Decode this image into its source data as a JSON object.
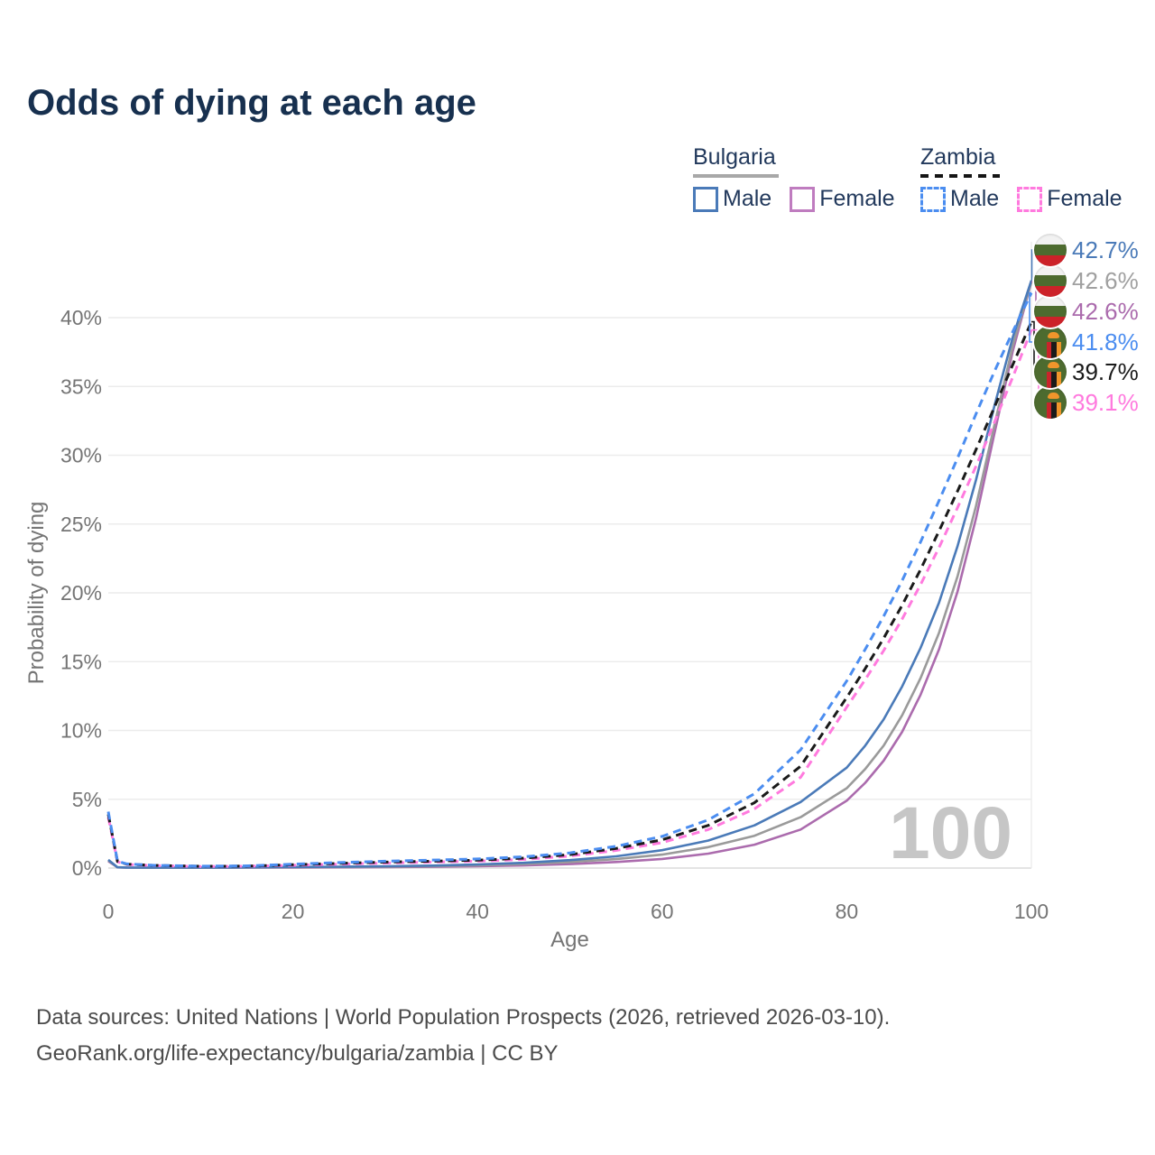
{
  "title": "Odds of dying at each age",
  "legend": {
    "groups": [
      {
        "name": "Bulgaria",
        "line_style": "solid",
        "line_color": "#a8a8a8",
        "items": [
          {
            "label": "Male",
            "color": "#4a7ab8",
            "style": "solid"
          },
          {
            "label": "Female",
            "color": "#bf7cbf",
            "style": "solid"
          }
        ]
      },
      {
        "name": "Zambia",
        "line_style": "dashed",
        "line_color": "#151515",
        "items": [
          {
            "label": "Male",
            "color": "#4b8df0",
            "style": "dashed"
          },
          {
            "label": "Female",
            "color": "#ff7ade",
            "style": "dashed"
          }
        ]
      }
    ]
  },
  "chart_data": {
    "type": "line",
    "title": "Odds of dying at each age",
    "xlabel": "Age",
    "ylabel": "Probability of dying",
    "xlim": [
      0,
      100
    ],
    "ylim": [
      0,
      44
    ],
    "xticks": [
      0,
      20,
      40,
      60,
      80,
      100
    ],
    "yticks": [
      0,
      5,
      10,
      15,
      20,
      25,
      30,
      35,
      40
    ],
    "ytick_suffix": "%",
    "grid": "horizontal",
    "legend_position": "top-right",
    "x": [
      0,
      1,
      2,
      5,
      10,
      15,
      20,
      25,
      30,
      35,
      40,
      45,
      50,
      55,
      60,
      65,
      70,
      75,
      80,
      82,
      84,
      86,
      88,
      90,
      92,
      94,
      96,
      98,
      100
    ],
    "series": [
      {
        "name": "Bulgaria Male",
        "country": "Bulgaria",
        "sex": "Male",
        "color": "#4a7ab8",
        "dash": "solid",
        "values": [
          0.6,
          0.06,
          0.04,
          0.03,
          0.03,
          0.05,
          0.08,
          0.1,
          0.13,
          0.18,
          0.26,
          0.38,
          0.58,
          0.85,
          1.3,
          2.0,
          3.1,
          4.8,
          7.3,
          8.9,
          10.8,
          13.2,
          16.0,
          19.3,
          23.4,
          28.2,
          33.6,
          38.6,
          42.7
        ],
        "end_label": "42.7%"
      },
      {
        "name": "Bulgaria Both sexes",
        "country": "Bulgaria",
        "sex": "Both",
        "color": "#9a9a9a",
        "dash": "solid",
        "values": [
          0.55,
          0.05,
          0.03,
          0.02,
          0.02,
          0.04,
          0.06,
          0.08,
          0.1,
          0.14,
          0.2,
          0.29,
          0.44,
          0.65,
          0.98,
          1.52,
          2.35,
          3.7,
          5.8,
          7.2,
          8.9,
          11.1,
          13.8,
          17.1,
          21.2,
          26.3,
          32.2,
          38.0,
          42.6
        ],
        "end_label": "42.6%"
      },
      {
        "name": "Bulgaria Female",
        "country": "Bulgaria",
        "sex": "Female",
        "color": "#ab6bad",
        "dash": "solid",
        "values": [
          0.5,
          0.05,
          0.03,
          0.02,
          0.02,
          0.03,
          0.04,
          0.05,
          0.07,
          0.09,
          0.13,
          0.19,
          0.29,
          0.44,
          0.66,
          1.05,
          1.7,
          2.8,
          4.9,
          6.2,
          7.8,
          9.9,
          12.6,
          15.9,
          20.1,
          25.4,
          31.6,
          37.6,
          42.6
        ],
        "end_label": "42.6%"
      },
      {
        "name": "Zambia Male",
        "country": "Zambia",
        "sex": "Male",
        "color": "#4b8df0",
        "dash": "dashed",
        "values": [
          4.1,
          0.5,
          0.3,
          0.2,
          0.14,
          0.16,
          0.28,
          0.4,
          0.5,
          0.58,
          0.66,
          0.82,
          1.1,
          1.58,
          2.3,
          3.5,
          5.4,
          8.6,
          13.6,
          15.9,
          18.3,
          20.9,
          23.7,
          26.7,
          29.8,
          33.0,
          36.1,
          39.0,
          41.8
        ],
        "end_label": "41.8%"
      },
      {
        "name": "Zambia Both sexes",
        "country": "Zambia",
        "sex": "Both",
        "color": "#1a1a1a",
        "dash": "dashed",
        "values": [
          3.9,
          0.48,
          0.28,
          0.19,
          0.13,
          0.14,
          0.24,
          0.34,
          0.43,
          0.5,
          0.57,
          0.72,
          0.98,
          1.42,
          2.05,
          3.1,
          4.75,
          7.4,
          12.4,
          14.5,
          16.7,
          19.1,
          21.7,
          24.5,
          27.4,
          30.4,
          33.5,
          36.6,
          39.7
        ],
        "end_label": "39.7%"
      },
      {
        "name": "Zambia Female",
        "country": "Zambia",
        "sex": "Female",
        "color": "#ff7ade",
        "dash": "dashed",
        "values": [
          3.7,
          0.45,
          0.26,
          0.18,
          0.12,
          0.13,
          0.2,
          0.28,
          0.36,
          0.43,
          0.5,
          0.63,
          0.87,
          1.28,
          1.85,
          2.8,
          4.3,
          6.6,
          11.7,
          13.7,
          15.8,
          18.1,
          20.6,
          23.3,
          26.2,
          29.2,
          32.4,
          35.7,
          39.1
        ],
        "end_label": "39.1%"
      }
    ]
  },
  "end_labels": [
    {
      "flag": "bulgaria",
      "value": "42.7%",
      "color": "#4a7ab8"
    },
    {
      "flag": "bulgaria",
      "value": "42.6%",
      "color": "#a0a0a0"
    },
    {
      "flag": "bulgaria",
      "value": "42.6%",
      "color": "#ab6bad"
    },
    {
      "flag": "zambia",
      "value": "41.8%",
      "color": "#4b8df0"
    },
    {
      "flag": "zambia",
      "value": "39.7%",
      "color": "#1a1a1a"
    },
    {
      "flag": "zambia",
      "value": "39.1%",
      "color": "#ff7ade"
    }
  ],
  "watermark": "100",
  "footer": {
    "line1": "Data sources: United Nations | World Population Prospects (2026, retrieved 2026-03-10).",
    "line2": "GeoRank.org/life-expectancy/bulgaria/zambia | CC BY"
  },
  "colors": {
    "title": "#17304f",
    "axis_text": "#757575",
    "gridline": "#ececec",
    "zero_line": "#dcdcdc",
    "watermark": "#c6c6c6",
    "footer_text": "#4b4b4b"
  }
}
